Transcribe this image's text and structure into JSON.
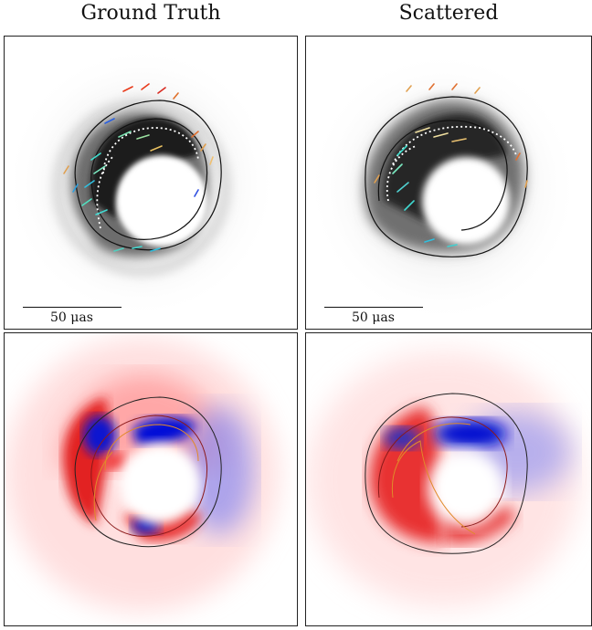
{
  "columns": [
    {
      "title": "Ground Truth"
    },
    {
      "title": "Scattered"
    }
  ],
  "scale_bar": {
    "label": "50 μas"
  },
  "colors": {
    "contour": "#111111",
    "red": "#e10000",
    "blue": "#0010d0",
    "red_contour": "#8b1a1a",
    "orange_contour": "#e08a2a",
    "dotted_contour": "#ffffff"
  }
}
